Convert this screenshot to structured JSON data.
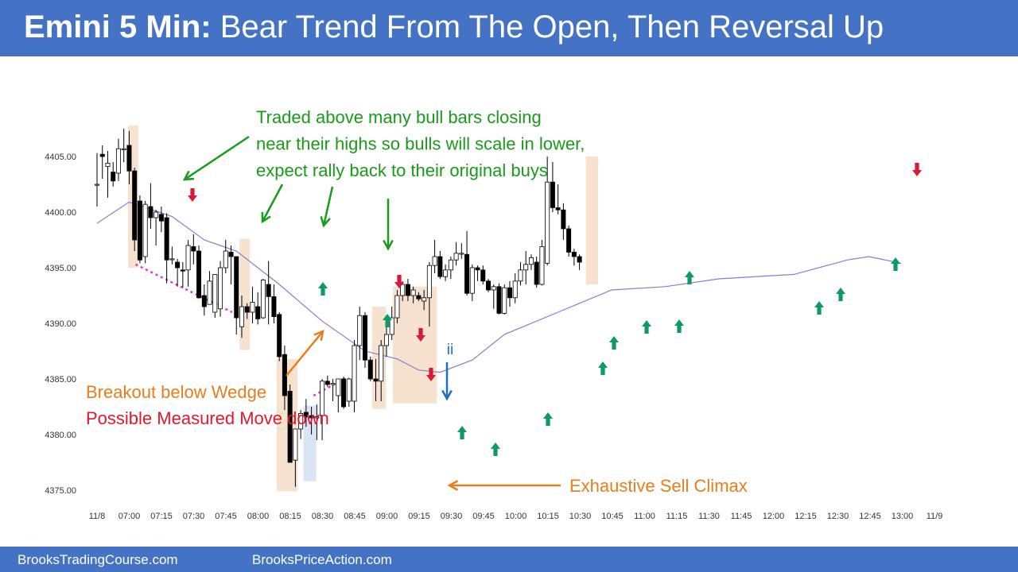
{
  "header": {
    "title_bold": "Emini 5 Min:",
    "title_rest": "Bear Trend From The Open, Then Reversal Up"
  },
  "footer": {
    "left": "BrooksTradingCourse.com",
    "right": "BrooksPriceAction.com"
  },
  "colors": {
    "bar_bg": "#4472c4",
    "bull_arrow": "#0e9a63",
    "bear_arrow": "#d7193a",
    "ema": "#7f7fd8",
    "highlight": "#f6e2cf",
    "highlight_blue": "#dbe4f7",
    "annotation_green": "#1a9a1a",
    "annotation_orange": "#e87d1e",
    "annotation_red": "#e0182d",
    "annotation_blue": "#1f6fc2",
    "trendline": "#d83ad8"
  },
  "chart_data": {
    "type": "candlestick",
    "title": "Emini 5 Min: Bear Trend From The Open, Then Reversal Up",
    "ylim": [
      4374.5,
      4408.5
    ],
    "yticks": [
      "4405.00",
      "4400.00",
      "4395.00",
      "4390.00",
      "4385.00",
      "4380.00",
      "4375.00"
    ],
    "xticks": [
      "11/8",
      "07:00",
      "07:15",
      "07:30",
      "07:45",
      "08:00",
      "08:15",
      "08:30",
      "08:45",
      "09:00",
      "09:15",
      "09:30",
      "09:45",
      "10:00",
      "10:15",
      "10:30",
      "10:45",
      "11:00",
      "11:15",
      "11:30",
      "11:45",
      "12:00",
      "12:15",
      "12:30",
      "12:45",
      "13:00",
      "11/9"
    ],
    "bars": [
      [
        4402.5,
        4405.3,
        4400.5,
        4402.5
      ],
      [
        4405.2,
        4406.0,
        4403.0,
        4405.0
      ],
      [
        4404.1,
        4405.5,
        4401.3,
        4404.4
      ],
      [
        4403.6,
        4404.5,
        4402.3,
        4402.8
      ],
      [
        4403.5,
        4406.6,
        4402.8,
        4405.7
      ],
      [
        4405.7,
        4407.5,
        4404.5,
        4405.7
      ],
      [
        4406.0,
        4407.3,
        4402.5,
        4403.7
      ],
      [
        4403.7,
        4404.0,
        4396.5,
        4397.5
      ],
      [
        4401.0,
        4401.5,
        4395.4,
        4395.7
      ],
      [
        4396.0,
        4401.0,
        4395.4,
        4400.7
      ],
      [
        4400.5,
        4402.6,
        4398.5,
        4399.5
      ],
      [
        4399.5,
        4400.2,
        4397.0,
        4400.0
      ],
      [
        4399.8,
        4400.5,
        4398.2,
        4399.2
      ],
      [
        4399.5,
        4399.9,
        4393.6,
        4395.7
      ],
      [
        4395.8,
        4396.9,
        4395.3,
        4395.8
      ],
      [
        4395.5,
        4395.8,
        4393.3,
        4395.0
      ],
      [
        4394.8,
        4395.5,
        4393.2,
        4394.7
      ],
      [
        4394.8,
        4397.5,
        4393.3,
        4397.0
      ],
      [
        4396.9,
        4398.0,
        4395.3,
        4396.5
      ],
      [
        4396.5,
        4397.0,
        4392.2,
        4392.3
      ],
      [
        4392.5,
        4393.5,
        4390.7,
        4391.5
      ],
      [
        4391.7,
        4394.7,
        4391.7,
        4393.8
      ],
      [
        4391.0,
        4394.3,
        4390.5,
        4394.4
      ],
      [
        4391.3,
        4395.6,
        4390.6,
        4395.0
      ],
      [
        4395.0,
        4397.5,
        4394.5,
        4396.5
      ],
      [
        4396.4,
        4397.0,
        4393.5,
        4396.0
      ],
      [
        4396.0,
        4396.0,
        4389.0,
        4390.5
      ],
      [
        4389.7,
        4392.5,
        4388.7,
        4391.5
      ],
      [
        4391.5,
        4391.8,
        4390.4,
        4391.0
      ],
      [
        4391.0,
        4393.3,
        4390.0,
        4391.9
      ],
      [
        4391.5,
        4392.8,
        4389.9,
        4390.4
      ],
      [
        4390.5,
        4394.0,
        4390.4,
        4393.9
      ],
      [
        4393.5,
        4395.6,
        4389.9,
        4392.4
      ],
      [
        4392.4,
        4393.5,
        4390.0,
        4390.6
      ],
      [
        4390.8,
        4391.0,
        4386.6,
        4387.0
      ],
      [
        4387.2,
        4388.0,
        4382.2,
        4383.5
      ],
      [
        4383.9,
        4384.5,
        4377.5,
        4377.5
      ],
      [
        4377.7,
        4380.0,
        4375.3,
        4380.5
      ],
      [
        4380.5,
        4382.2,
        4379.6,
        4381.9
      ],
      [
        4382.0,
        4383.2,
        4380.7,
        4381.6
      ],
      [
        4381.7,
        4382.5,
        4380.0,
        4381.5
      ],
      [
        4381.5,
        4382.7,
        4379.5,
        4381.6
      ],
      [
        4381.7,
        4385.0,
        4379.5,
        4384.8
      ],
      [
        4384.8,
        4385.3,
        4384.3,
        4384.5
      ],
      [
        4384.5,
        4385.0,
        4383.0,
        4384.6
      ],
      [
        4383.5,
        4385.0,
        4382.0,
        4385.0
      ],
      [
        4385.0,
        4385.2,
        4382.3,
        4382.5
      ],
      [
        4383.0,
        4385.1,
        4382.5,
        4385.0
      ],
      [
        4383.0,
        4388.5,
        4382.0,
        4388.0
      ],
      [
        4388.0,
        4391.5,
        4386.7,
        4390.7
      ],
      [
        4390.7,
        4391.0,
        4386.0,
        4386.7
      ],
      [
        4386.7,
        4387.0,
        4384.8,
        4385.0
      ],
      [
        4385.0,
        4386.8,
        4383.0,
        4384.8
      ],
      [
        4384.8,
        4388.5,
        4383.0,
        4388.0
      ],
      [
        4388.0,
        4390.0,
        4387.0,
        4389.0
      ],
      [
        4389.0,
        4391.5,
        4388.5,
        4390.5
      ],
      [
        4390.5,
        4393.0,
        4390.0,
        4392.5
      ],
      [
        4392.5,
        4393.8,
        4392.0,
        4393.5
      ],
      [
        4393.5,
        4394.0,
        4392.0,
        4392.5
      ],
      [
        4392.5,
        4393.3,
        4391.8,
        4393.0
      ],
      [
        4392.5,
        4392.8,
        4392.0,
        4392.2
      ],
      [
        4392.0,
        4393.0,
        4391.2,
        4392.3
      ],
      [
        4392.3,
        4395.5,
        4389.7,
        4395.2
      ],
      [
        4395.2,
        4397.5,
        4394.5,
        4396.0
      ],
      [
        4396.0,
        4396.5,
        4394.0,
        4394.2
      ],
      [
        4394.2,
        4395.3,
        4393.8,
        4394.8
      ],
      [
        4394.8,
        4396.0,
        4394.0,
        4395.7
      ],
      [
        4395.7,
        4397.3,
        4395.2,
        4396.3
      ],
      [
        4396.3,
        4397.2,
        4395.8,
        4396.3
      ],
      [
        4396.2,
        4398.3,
        4392.5,
        4392.7
      ],
      [
        4392.7,
        4395.3,
        4392.0,
        4395.0
      ],
      [
        4395.0,
        4395.2,
        4393.8,
        4394.8
      ],
      [
        4394.8,
        4395.2,
        4393.5,
        4393.8
      ],
      [
        4393.8,
        4394.0,
        4392.8,
        4393.0
      ],
      [
        4393.0,
        4393.5,
        4391.3,
        4393.3
      ],
      [
        4393.3,
        4393.6,
        4390.8,
        4390.9
      ],
      [
        4390.9,
        4393.5,
        4390.8,
        4393.2
      ],
      [
        4393.2,
        4393.8,
        4391.5,
        4392.3
      ],
      [
        4392.3,
        4394.5,
        4391.8,
        4393.8
      ],
      [
        4393.8,
        4395.5,
        4393.4,
        4394.8
      ],
      [
        4394.8,
        4396.5,
        4393.5,
        4395.3
      ],
      [
        4395.3,
        4396.2,
        4394.8,
        4395.9
      ],
      [
        4395.5,
        4396.0,
        4393.2,
        4393.5
      ],
      [
        4393.5,
        4397.5,
        4393.4,
        4396.9
      ],
      [
        4395.4,
        4405.0,
        4395.2,
        4402.7
      ],
      [
        4402.7,
        4404.5,
        4400.0,
        4400.4
      ],
      [
        4400.4,
        4402.5,
        4399.8,
        4400.2
      ],
      [
        4400.2,
        4400.8,
        4397.5,
        4398.5
      ],
      [
        4398.5,
        4398.8,
        4396.0,
        4396.4
      ],
      [
        4396.4,
        4396.7,
        4395.2,
        4396.0
      ],
      [
        4396.0,
        4396.2,
        4394.8,
        4395.5
      ]
    ],
    "ema": [
      [
        0,
        4399.0
      ],
      [
        6,
        4400.9
      ],
      [
        14,
        4399.6
      ],
      [
        20,
        4397.5
      ],
      [
        26,
        4396.5
      ],
      [
        34,
        4393.5
      ],
      [
        42,
        4390.2
      ],
      [
        50,
        4387.5
      ],
      [
        56,
        4386.8
      ],
      [
        60,
        4385.8
      ],
      [
        64,
        4385.6
      ],
      [
        70,
        4386.7
      ],
      [
        76,
        4389.0
      ],
      [
        86,
        4391.0
      ],
      [
        96,
        4393.0
      ],
      [
        106,
        4393.3
      ],
      [
        116,
        4394.0
      ],
      [
        130,
        4394.4
      ],
      [
        140,
        4395.7
      ],
      [
        144,
        4396.0
      ],
      [
        150,
        4395.4
      ]
    ],
    "annotations": {
      "green_note": [
        "Traded above many bull bars closing",
        "near their highs so bulls will scale in lower,",
        "expect rally back to their original buys"
      ],
      "orange_note": "Breakout below Wedge",
      "red_note": "Possible Measured Move down",
      "climax_note": "Exhaustive Sell Climax",
      "ii_label": "ii"
    }
  }
}
